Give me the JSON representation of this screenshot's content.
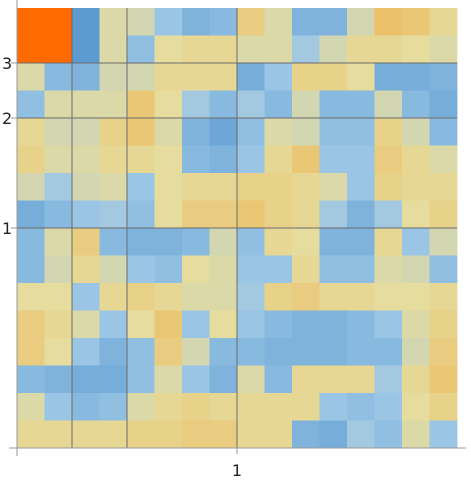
{
  "chart_data": {
    "type": "heatmap",
    "rows": 16,
    "cols": 16,
    "color_scale": [
      "#5b9bd1",
      "#9ec8e6",
      "#e6dc9e",
      "#eeb550",
      "#ff6a00"
    ],
    "value_range": [
      -1,
      2
    ],
    "values": [
      [
        2,
        2,
        -1,
        0.4,
        0.3,
        -0.3,
        -0.6,
        -0.5,
        0.8,
        0.4,
        -0.6,
        -0.6,
        0.3,
        1.0,
        0.9,
        0.6
      ],
      [
        2,
        2,
        -1,
        0.4,
        -0.4,
        0.5,
        0.6,
        0.6,
        0.4,
        0.4,
        -0.2,
        0.3,
        0.6,
        0.6,
        0.5,
        0.4
      ],
      [
        0.4,
        -0.5,
        -0.6,
        0.3,
        0.3,
        0.6,
        0.6,
        0.6,
        -0.7,
        -0.3,
        0.7,
        0.7,
        0.5,
        -0.7,
        -0.7,
        -0.6
      ],
      [
        -0.4,
        0.4,
        0.4,
        0.4,
        0.9,
        0.5,
        -0.2,
        -0.5,
        -0.2,
        -0.5,
        0.3,
        -0.5,
        -0.5,
        0.3,
        -0.5,
        -0.7
      ],
      [
        0.6,
        0.3,
        0.3,
        0.7,
        0.9,
        0.4,
        -0.6,
        -0.8,
        -0.4,
        0.4,
        0.3,
        -0.4,
        -0.4,
        0.7,
        0.3,
        -0.5
      ],
      [
        0.7,
        0.4,
        0.4,
        0.6,
        0.6,
        0.5,
        -0.5,
        -0.6,
        -0.3,
        0.6,
        0.9,
        -0.3,
        -0.3,
        0.8,
        0.6,
        0.4
      ],
      [
        0.3,
        -0.2,
        0.3,
        0.4,
        -0.3,
        0.5,
        0.6,
        0.6,
        0.7,
        0.7,
        0.6,
        0.4,
        -0.3,
        0.7,
        0.6,
        0.6
      ],
      [
        -0.7,
        -0.5,
        -0.3,
        -0.2,
        -0.4,
        0.5,
        0.8,
        0.8,
        0.9,
        0.7,
        0.6,
        -0.2,
        -0.6,
        -0.2,
        0.5,
        0.7
      ],
      [
        -0.5,
        0.4,
        0.8,
        -0.5,
        -0.6,
        -0.6,
        -0.5,
        0.3,
        -0.4,
        0.6,
        0.5,
        -0.6,
        -0.6,
        0.6,
        -0.3,
        0.3
      ],
      [
        -0.5,
        0.3,
        0.6,
        0.3,
        -0.3,
        -0.4,
        0.5,
        0.4,
        -0.3,
        -0.3,
        0.6,
        -0.4,
        -0.4,
        0.4,
        0.3,
        -0.4
      ],
      [
        0.5,
        0.5,
        -0.3,
        0.6,
        0.7,
        0.6,
        0.4,
        0.4,
        -0.2,
        0.7,
        0.8,
        0.6,
        0.6,
        0.5,
        0.5,
        0.6
      ],
      [
        0.8,
        0.6,
        0.4,
        -0.3,
        0.5,
        0.9,
        -0.3,
        0.5,
        -0.3,
        -0.5,
        -0.6,
        -0.6,
        -0.5,
        -0.3,
        0.4,
        0.7
      ],
      [
        0.8,
        0.5,
        -0.3,
        -0.6,
        -0.4,
        0.8,
        0.3,
        -0.5,
        -0.5,
        -0.6,
        -0.6,
        -0.6,
        -0.5,
        -0.5,
        0.3,
        0.8
      ],
      [
        -0.5,
        -0.6,
        -0.7,
        -0.7,
        -0.4,
        0.4,
        -0.3,
        -0.6,
        0.4,
        -0.5,
        0.6,
        0.6,
        0.6,
        -0.2,
        0.6,
        0.9
      ],
      [
        0.4,
        -0.3,
        -0.5,
        -0.4,
        0.4,
        0.6,
        0.7,
        0.6,
        0.6,
        0.6,
        0.6,
        -0.3,
        -0.4,
        -0.3,
        0.5,
        0.7
      ],
      [
        0.6,
        0.6,
        0.6,
        0.6,
        0.7,
        0.7,
        0.8,
        0.8,
        0.6,
        0.6,
        -0.6,
        -0.7,
        -0.2,
        -0.4,
        0.4,
        -0.3
      ]
    ],
    "grid_lines": {
      "rows_after": [
        2,
        4,
        8
      ],
      "cols_after": [
        2,
        4,
        8
      ]
    },
    "x_ticks": [
      {
        "label": "1",
        "after_col": 8
      }
    ],
    "y_ticks": [
      {
        "label": "3",
        "after_row": 2
      },
      {
        "label": "2",
        "after_row": 4
      },
      {
        "label": "1",
        "after_row": 8
      }
    ],
    "title": "",
    "xlabel": "",
    "ylabel": ""
  }
}
